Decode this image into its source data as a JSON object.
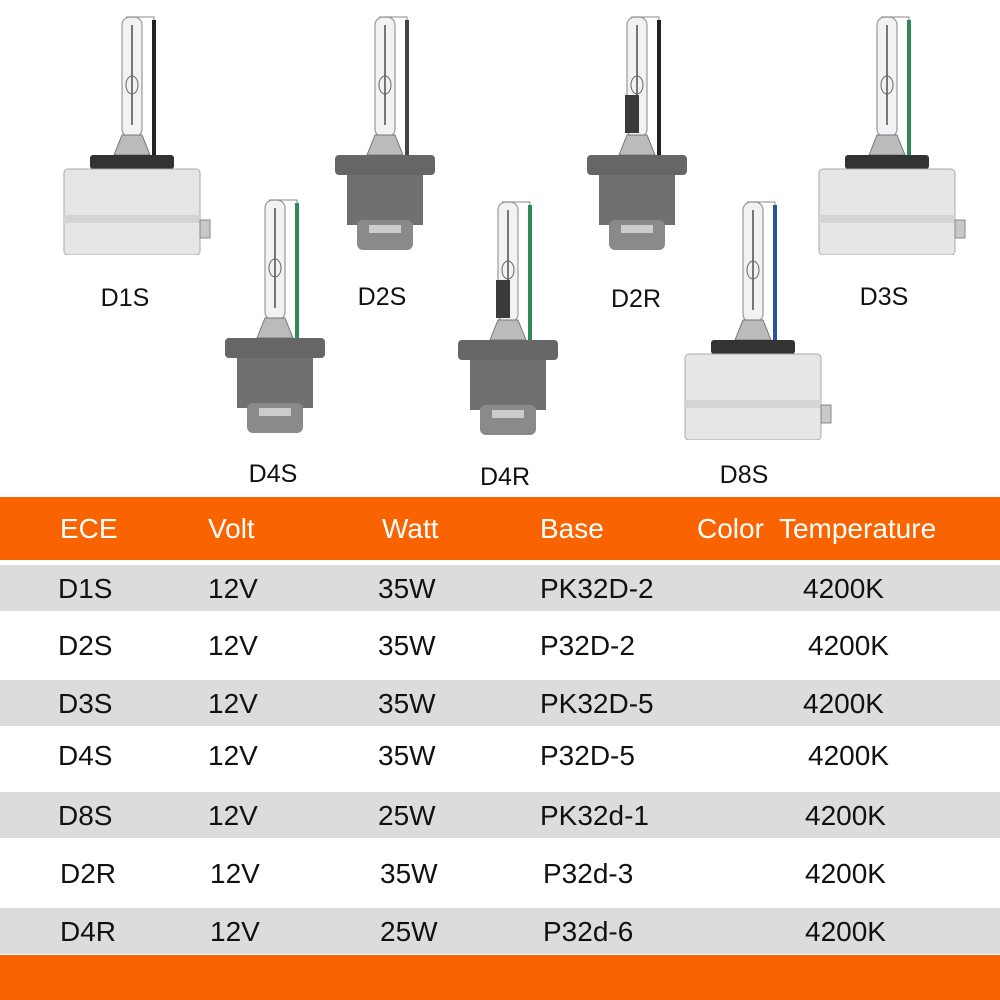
{
  "colors": {
    "accent": "#f96400",
    "row_gray": "#dcdcdc"
  },
  "bulbs": [
    {
      "label": "D1S",
      "base": "box",
      "wire": "#222222",
      "shield": false
    },
    {
      "label": "D2S",
      "base": "round",
      "wire": "#444444",
      "shield": false
    },
    {
      "label": "D2R",
      "base": "round",
      "wire": "#222222",
      "shield": true
    },
    {
      "label": "D3S",
      "base": "box",
      "wire": "#2e8b57",
      "shield": false
    },
    {
      "label": "D4S",
      "base": "round",
      "wire": "#2e8b57",
      "shield": false
    },
    {
      "label": "D4R",
      "base": "round",
      "wire": "#2e8b57",
      "shield": true
    },
    {
      "label": "D8S",
      "base": "box",
      "wire": "#2f4f9f",
      "shield": false
    }
  ],
  "table": {
    "headers": [
      "ECE",
      "Volt",
      "Watt",
      "Base",
      "Color  Temperature"
    ],
    "rows": [
      [
        "D1S",
        "12V",
        "35W",
        "PK32D-2",
        "4200K"
      ],
      [
        "D2S",
        "12V",
        "35W",
        "P32D-2",
        "4200K"
      ],
      [
        "D3S",
        "12V",
        "35W",
        "PK32D-5",
        "4200K"
      ],
      [
        "D4S",
        "12V",
        "35W",
        "P32D-5",
        "4200K"
      ],
      [
        "D8S",
        "12V",
        "25W",
        "PK32d-1",
        "4200K"
      ],
      [
        "D2R",
        "12V",
        "35W",
        "P32d-3",
        "4200K"
      ],
      [
        "D4R",
        "12V",
        "25W",
        "P32d-6",
        "4200K"
      ]
    ]
  }
}
